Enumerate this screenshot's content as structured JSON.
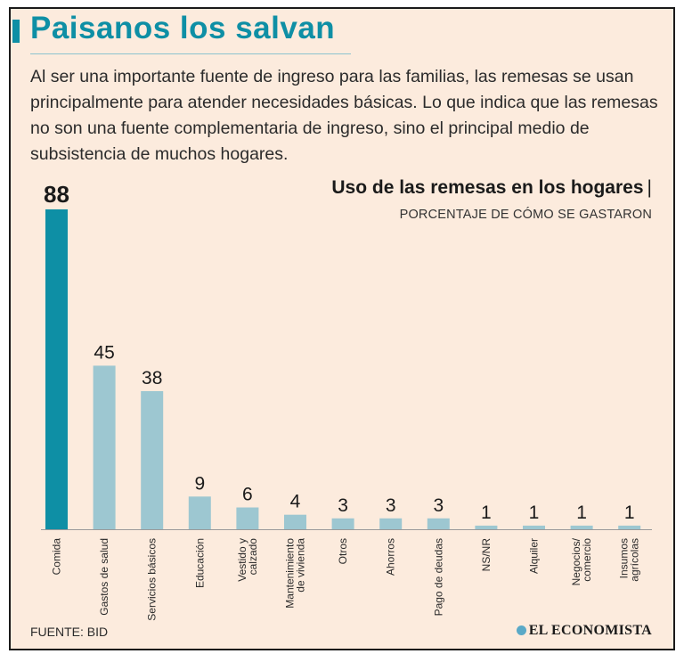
{
  "header": {
    "title": "Paisanos los salvan",
    "intro": "Al ser una importante fuente de ingreso para las familias, las remesas se usan principalmente para atender necesidades básicas. Lo que indica que las remesas no son una fuente complementaria de ingreso, sino el principal medio de subsistencia de muchos hogares."
  },
  "footer": {
    "source": "FUENTE: BID",
    "logo": "EL ECONOMISTA"
  },
  "colors": {
    "highlight": "#0e8fa5",
    "bar": "#9dc7d1",
    "background": "#fcebdd"
  },
  "chart_data": {
    "type": "bar",
    "title": "Uso de las remesas en los hogares",
    "subtitle": "PORCENTAJE DE CÓMO SE GASTARON",
    "xlabel": "",
    "ylabel": "",
    "ylim": [
      0,
      88
    ],
    "grid": false,
    "highlight_index": 0,
    "categories": [
      [
        "Comida"
      ],
      [
        "Gastos de salud"
      ],
      [
        "Servicios básicos"
      ],
      [
        "Educación"
      ],
      [
        "Vestido y",
        "calzado"
      ],
      [
        "Mantenimiento",
        "de vivienda"
      ],
      [
        "Otros"
      ],
      [
        "Ahorros"
      ],
      [
        "Pago de deudas"
      ],
      [
        "NS/NR"
      ],
      [
        "Alquiler"
      ],
      [
        "Negocios/",
        "comercio"
      ],
      [
        "Insumos",
        "agrícolas"
      ]
    ],
    "values": [
      88,
      45,
      38,
      9,
      6,
      4,
      3,
      3,
      3,
      1,
      1,
      1,
      1
    ]
  }
}
